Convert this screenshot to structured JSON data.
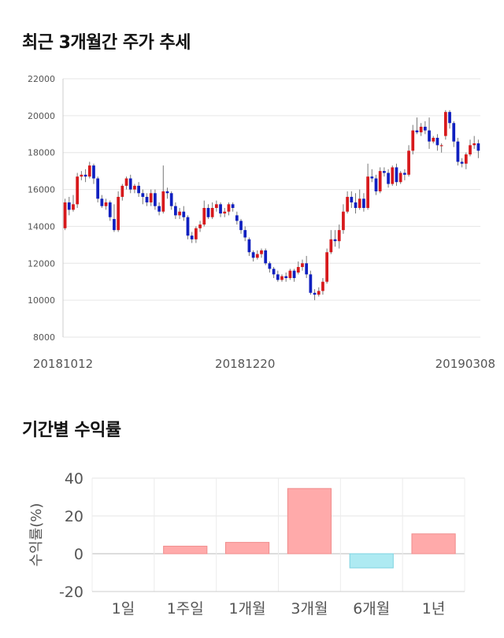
{
  "sections": {
    "price_title": "최근 3개월간 주가 추세",
    "return_title": "기간별 수익률"
  },
  "chart_data": [
    {
      "type": "candlestick",
      "title": "최근 3개월간 주가 추세",
      "ylim": [
        8000,
        22000
      ],
      "y_ticks": [
        "22000",
        "20000",
        "18000",
        "16000",
        "14000",
        "12000",
        "10000",
        "8000"
      ],
      "x_tick_labels": [
        {
          "index": 0,
          "label": "20181012"
        },
        {
          "index": 44,
          "label": "20181220"
        },
        {
          "index": 91,
          "label": "20190308"
        }
      ],
      "colors": {
        "up": "#d7191c",
        "down": "#1020c0",
        "wick": "#777777"
      },
      "candles": [
        [
          13900,
          15300,
          15500,
          13800
        ],
        [
          15300,
          14900,
          15600,
          14600
        ],
        [
          14900,
          15200,
          15700,
          14800
        ],
        [
          15200,
          16700,
          16900,
          15000
        ],
        [
          16700,
          16800,
          17000,
          16500
        ],
        [
          16800,
          16700,
          17100,
          16400
        ],
        [
          16700,
          17300,
          17500,
          16600
        ],
        [
          17300,
          16600,
          17400,
          16300
        ],
        [
          16600,
          15500,
          16700,
          15300
        ],
        [
          15500,
          15100,
          15700,
          15000
        ],
        [
          15100,
          15300,
          15500,
          14900
        ],
        [
          15300,
          14500,
          15400,
          14300
        ],
        [
          14400,
          13800,
          15200,
          13700
        ],
        [
          13800,
          15600,
          15900,
          13700
        ],
        [
          15600,
          16200,
          16300,
          15400
        ],
        [
          16200,
          16600,
          16700,
          16000
        ],
        [
          16600,
          16000,
          16800,
          15800
        ],
        [
          16000,
          16200,
          16300,
          15800
        ],
        [
          16200,
          15800,
          16400,
          15600
        ],
        [
          15800,
          15600,
          16000,
          15200
        ],
        [
          15600,
          15300,
          15800,
          15100
        ],
        [
          15300,
          15800,
          16000,
          15100
        ],
        [
          15800,
          15100,
          16000,
          14900
        ],
        [
          15100,
          14800,
          15300,
          14600
        ],
        [
          14800,
          15900,
          17300,
          14700
        ],
        [
          15900,
          15800,
          16100,
          15500
        ],
        [
          15800,
          15100,
          15900,
          14900
        ],
        [
          15100,
          14600,
          15300,
          14400
        ],
        [
          14600,
          14800,
          15000,
          14400
        ],
        [
          14800,
          14500,
          15100,
          14300
        ],
        [
          14500,
          13500,
          14600,
          13300
        ],
        [
          13500,
          13300,
          13700,
          13100
        ],
        [
          13300,
          13900,
          14000,
          13100
        ],
        [
          13900,
          14100,
          14300,
          13700
        ],
        [
          14100,
          15000,
          15400,
          14000
        ],
        [
          15000,
          14500,
          15200,
          14400
        ],
        [
          14500,
          15000,
          15300,
          14400
        ],
        [
          15000,
          15200,
          15400,
          14800
        ],
        [
          15200,
          14700,
          15300,
          14500
        ],
        [
          14700,
          14800,
          15000,
          14500
        ],
        [
          14800,
          15200,
          15300,
          14600
        ],
        [
          15200,
          15000,
          15300,
          14800
        ],
        [
          14600,
          14300,
          14800,
          14100
        ],
        [
          14300,
          13800,
          14400,
          13600
        ],
        [
          13800,
          13400,
          14000,
          13200
        ],
        [
          13300,
          12600,
          13400,
          12400
        ],
        [
          12600,
          12300,
          12700,
          12100
        ],
        [
          12300,
          12500,
          12700,
          12200
        ],
        [
          12500,
          12700,
          12800,
          12300
        ],
        [
          12700,
          12000,
          12800,
          11900
        ],
        [
          12000,
          11700,
          12100,
          11500
        ],
        [
          11700,
          11400,
          11800,
          11200
        ],
        [
          11400,
          11100,
          11600,
          11000
        ],
        [
          11100,
          11300,
          11400,
          11000
        ],
        [
          11300,
          11200,
          11500,
          11000
        ],
        [
          11200,
          11600,
          11700,
          11100
        ],
        [
          11600,
          11200,
          11700,
          11000
        ],
        [
          11500,
          11800,
          12100,
          11400
        ],
        [
          11800,
          12000,
          12200,
          11600
        ],
        [
          12000,
          11400,
          12400,
          11200
        ],
        [
          11400,
          10400,
          11600,
          10300
        ],
        [
          10400,
          10300,
          10600,
          10000
        ],
        [
          10300,
          10500,
          10700,
          10200
        ],
        [
          10500,
          11000,
          11200,
          10300
        ],
        [
          11000,
          12600,
          12800,
          10900
        ],
        [
          12600,
          13300,
          13800,
          12500
        ],
        [
          13300,
          13200,
          13800,
          12900
        ],
        [
          13200,
          13800,
          14100,
          12800
        ],
        [
          13800,
          14800,
          15200,
          13600
        ],
        [
          14800,
          15600,
          15900,
          14700
        ],
        [
          15600,
          15300,
          15900,
          15000
        ],
        [
          15300,
          15000,
          15800,
          14700
        ],
        [
          15000,
          15500,
          16000,
          14900
        ],
        [
          15500,
          15000,
          15800,
          14800
        ],
        [
          15000,
          16700,
          17400,
          14900
        ],
        [
          16700,
          16600,
          17100,
          16400
        ],
        [
          16600,
          15900,
          16800,
          15700
        ],
        [
          15900,
          17000,
          17200,
          15800
        ],
        [
          17000,
          16900,
          17200,
          16700
        ],
        [
          16900,
          16300,
          17100,
          16100
        ],
        [
          16300,
          17200,
          17300,
          16200
        ],
        [
          17200,
          16400,
          17400,
          16200
        ],
        [
          16400,
          16900,
          17000,
          16300
        ],
        [
          16900,
          16800,
          17100,
          16500
        ],
        [
          16800,
          18100,
          18400,
          16700
        ],
        [
          18100,
          19200,
          19500,
          17900
        ],
        [
          19200,
          19100,
          19900,
          19000
        ],
        [
          19100,
          19400,
          19600,
          18900
        ],
        [
          19400,
          19200,
          19700,
          19000
        ],
        [
          19200,
          18600,
          19900,
          18200
        ],
        [
          18600,
          18800,
          18900,
          18500
        ],
        [
          18800,
          18400,
          19000,
          18100
        ],
        [
          18400,
          18400,
          18500,
          18000
        ],
        [
          18900,
          20200,
          20300,
          18700
        ],
        [
          20200,
          19600,
          20300,
          19300
        ],
        [
          19600,
          18600,
          19700,
          18300
        ],
        [
          18600,
          17500,
          18800,
          17300
        ],
        [
          17500,
          17400,
          17700,
          17200
        ],
        [
          17400,
          17900,
          18000,
          17100
        ],
        [
          17900,
          18400,
          18700,
          17800
        ],
        [
          18400,
          18500,
          18900,
          18200
        ],
        [
          18500,
          18100,
          18700,
          17700
        ]
      ]
    },
    {
      "type": "bar",
      "title": "기간별 수익률",
      "ylabel": "수익률(%)",
      "ylim": [
        -20,
        40
      ],
      "y_ticks": [
        "40",
        "20",
        "0",
        "-20"
      ],
      "categories": [
        "1일",
        "1주일",
        "1개월",
        "3개월",
        "6개월",
        "1년"
      ],
      "values": [
        0,
        4,
        6,
        34.5,
        -7.5,
        10.5
      ],
      "colors": {
        "positive": "#ffaaaa",
        "positive_edge": "#f08c8c",
        "negative": "#aeeaf2",
        "negative_edge": "#7fd3e0"
      }
    }
  ]
}
